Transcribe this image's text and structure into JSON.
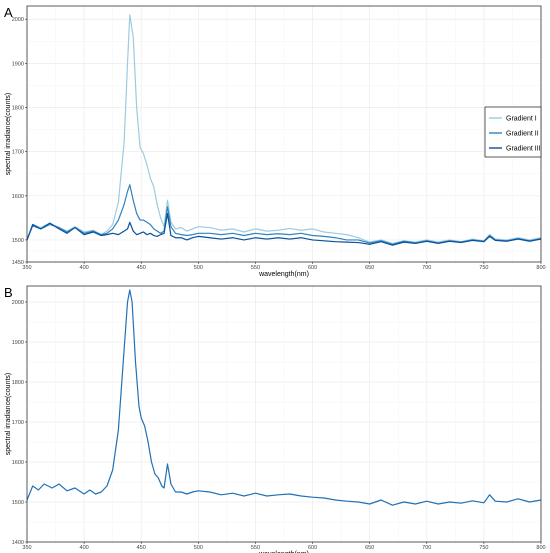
{
  "figure": {
    "panel_letters": [
      "A",
      "B"
    ]
  },
  "colors": {
    "gradient_1": "#9ecae1",
    "gradient_2": "#3182bd",
    "gradient_3": "#08519c",
    "panel_b": "#2171b5"
  },
  "chart_data": [
    {
      "panel": "A",
      "type": "line",
      "xlabel": "wavelength(nm)",
      "ylabel": "spectral irradiance(counts)",
      "xlim": [
        350,
        800
      ],
      "ylim": [
        1450,
        2030
      ],
      "xticks": [
        350,
        400,
        450,
        500,
        550,
        600,
        650,
        700,
        750,
        800
      ],
      "yticks": [
        1450,
        1500,
        1600,
        1700,
        1800,
        1900,
        2000
      ],
      "grid": true,
      "legend": "right",
      "series": [
        {
          "name": "Gradient I",
          "color": "#9ecae1",
          "points": [
            [
              350,
              1500
            ],
            [
              355,
              1535
            ],
            [
              362,
              1528
            ],
            [
              370,
              1538
            ],
            [
              378,
              1528
            ],
            [
              385,
              1520
            ],
            [
              392,
              1530
            ],
            [
              400,
              1518
            ],
            [
              408,
              1522
            ],
            [
              415,
              1512
            ],
            [
              420,
              1520
            ],
            [
              425,
              1535
            ],
            [
              430,
              1585
            ],
            [
              435,
              1720
            ],
            [
              438,
              1900
            ],
            [
              440,
              2010
            ],
            [
              443,
              1960
            ],
            [
              446,
              1800
            ],
            [
              449,
              1710
            ],
            [
              452,
              1695
            ],
            [
              455,
              1670
            ],
            [
              458,
              1640
            ],
            [
              461,
              1620
            ],
            [
              464,
              1580
            ],
            [
              467,
              1550
            ],
            [
              470,
              1530
            ],
            [
              473,
              1590
            ],
            [
              476,
              1540
            ],
            [
              480,
              1525
            ],
            [
              485,
              1528
            ],
            [
              490,
              1520
            ],
            [
              495,
              1525
            ],
            [
              500,
              1530
            ],
            [
              510,
              1528
            ],
            [
              520,
              1522
            ],
            [
              530,
              1525
            ],
            [
              540,
              1518
            ],
            [
              550,
              1525
            ],
            [
              560,
              1520
            ],
            [
              570,
              1522
            ],
            [
              580,
              1526
            ],
            [
              590,
              1522
            ],
            [
              600,
              1525
            ],
            [
              610,
              1518
            ],
            [
              620,
              1515
            ],
            [
              630,
              1512
            ],
            [
              640,
              1505
            ],
            [
              650,
              1495
            ],
            [
              660,
              1500
            ],
            [
              670,
              1492
            ],
            [
              680,
              1498
            ],
            [
              690,
              1495
            ],
            [
              700,
              1500
            ],
            [
              710,
              1495
            ],
            [
              720,
              1500
            ],
            [
              730,
              1496
            ],
            [
              740,
              1502
            ],
            [
              750,
              1498
            ],
            [
              755,
              1512
            ],
            [
              760,
              1502
            ],
            [
              770,
              1500
            ],
            [
              780,
              1505
            ],
            [
              790,
              1500
            ],
            [
              800,
              1505
            ]
          ]
        },
        {
          "name": "Gradient II",
          "color": "#3182bd",
          "points": [
            [
              350,
              1500
            ],
            [
              355,
              1532
            ],
            [
              362,
              1525
            ],
            [
              370,
              1535
            ],
            [
              378,
              1528
            ],
            [
              385,
              1518
            ],
            [
              392,
              1528
            ],
            [
              400,
              1515
            ],
            [
              408,
              1520
            ],
            [
              415,
              1512
            ],
            [
              420,
              1515
            ],
            [
              425,
              1525
            ],
            [
              430,
              1545
            ],
            [
              435,
              1580
            ],
            [
              438,
              1610
            ],
            [
              440,
              1625
            ],
            [
              443,
              1590
            ],
            [
              446,
              1560
            ],
            [
              449,
              1545
            ],
            [
              452,
              1545
            ],
            [
              455,
              1540
            ],
            [
              458,
              1535
            ],
            [
              461,
              1525
            ],
            [
              464,
              1520
            ],
            [
              467,
              1515
            ],
            [
              470,
              1520
            ],
            [
              473,
              1575
            ],
            [
              476,
              1530
            ],
            [
              480,
              1515
            ],
            [
              485,
              1512
            ],
            [
              490,
              1510
            ],
            [
              495,
              1512
            ],
            [
              500,
              1515
            ],
            [
              510,
              1515
            ],
            [
              520,
              1512
            ],
            [
              530,
              1515
            ],
            [
              540,
              1510
            ],
            [
              550,
              1515
            ],
            [
              560,
              1512
            ],
            [
              570,
              1514
            ],
            [
              580,
              1512
            ],
            [
              590,
              1515
            ],
            [
              600,
              1510
            ],
            [
              610,
              1508
            ],
            [
              620,
              1505
            ],
            [
              630,
              1500
            ],
            [
              640,
              1500
            ],
            [
              650,
              1493
            ],
            [
              660,
              1498
            ],
            [
              670,
              1490
            ],
            [
              680,
              1497
            ],
            [
              690,
              1493
            ],
            [
              700,
              1498
            ],
            [
              710,
              1493
            ],
            [
              720,
              1498
            ],
            [
              730,
              1495
            ],
            [
              740,
              1500
            ],
            [
              750,
              1497
            ],
            [
              755,
              1510
            ],
            [
              760,
              1500
            ],
            [
              770,
              1498
            ],
            [
              780,
              1503
            ],
            [
              790,
              1498
            ],
            [
              800,
              1503
            ]
          ]
        },
        {
          "name": "Gradient III",
          "color": "#08519c",
          "points": [
            [
              350,
              1500
            ],
            [
              355,
              1535
            ],
            [
              362,
              1525
            ],
            [
              370,
              1538
            ],
            [
              378,
              1525
            ],
            [
              385,
              1515
            ],
            [
              392,
              1528
            ],
            [
              400,
              1512
            ],
            [
              408,
              1518
            ],
            [
              415,
              1510
            ],
            [
              420,
              1512
            ],
            [
              425,
              1515
            ],
            [
              430,
              1512
            ],
            [
              435,
              1520
            ],
            [
              438,
              1525
            ],
            [
              440,
              1540
            ],
            [
              443,
              1520
            ],
            [
              446,
              1512
            ],
            [
              449,
              1515
            ],
            [
              452,
              1518
            ],
            [
              455,
              1512
            ],
            [
              458,
              1515
            ],
            [
              461,
              1510
            ],
            [
              464,
              1508
            ],
            [
              467,
              1512
            ],
            [
              470,
              1515
            ],
            [
              473,
              1560
            ],
            [
              476,
              1510
            ],
            [
              480,
              1505
            ],
            [
              485,
              1505
            ],
            [
              490,
              1500
            ],
            [
              495,
              1505
            ],
            [
              500,
              1508
            ],
            [
              510,
              1505
            ],
            [
              520,
              1502
            ],
            [
              530,
              1505
            ],
            [
              540,
              1500
            ],
            [
              550,
              1505
            ],
            [
              560,
              1502
            ],
            [
              570,
              1505
            ],
            [
              580,
              1502
            ],
            [
              590,
              1505
            ],
            [
              600,
              1500
            ],
            [
              610,
              1498
            ],
            [
              620,
              1496
            ],
            [
              630,
              1495
            ],
            [
              640,
              1494
            ],
            [
              650,
              1490
            ],
            [
              660,
              1496
            ],
            [
              670,
              1488
            ],
            [
              680,
              1495
            ],
            [
              690,
              1492
            ],
            [
              700,
              1497
            ],
            [
              710,
              1492
            ],
            [
              720,
              1497
            ],
            [
              730,
              1494
            ],
            [
              740,
              1499
            ],
            [
              750,
              1496
            ],
            [
              755,
              1508
            ],
            [
              760,
              1499
            ],
            [
              770,
              1497
            ],
            [
              780,
              1502
            ],
            [
              790,
              1497
            ],
            [
              800,
              1502
            ]
          ]
        }
      ]
    },
    {
      "panel": "B",
      "type": "line",
      "xlabel": "wavelength(nm)",
      "ylabel": "spectral irradiance(counts)",
      "xlim": [
        350,
        800
      ],
      "ylim": [
        1400,
        2040
      ],
      "xticks": [
        350,
        400,
        450,
        500,
        550,
        600,
        650,
        700,
        750,
        800
      ],
      "yticks": [
        1400,
        1500,
        1600,
        1700,
        1800,
        1900,
        2000
      ],
      "grid": true,
      "series": [
        {
          "color": "#2171b5",
          "points": [
            [
              350,
              1505
            ],
            [
              355,
              1540
            ],
            [
              360,
              1530
            ],
            [
              365,
              1545
            ],
            [
              372,
              1535
            ],
            [
              378,
              1545
            ],
            [
              385,
              1528
            ],
            [
              392,
              1535
            ],
            [
              400,
              1520
            ],
            [
              405,
              1530
            ],
            [
              410,
              1520
            ],
            [
              415,
              1525
            ],
            [
              420,
              1540
            ],
            [
              425,
              1580
            ],
            [
              430,
              1680
            ],
            [
              435,
              1880
            ],
            [
              438,
              2000
            ],
            [
              440,
              2030
            ],
            [
              442,
              2000
            ],
            [
              445,
              1850
            ],
            [
              448,
              1740
            ],
            [
              450,
              1710
            ],
            [
              453,
              1690
            ],
            [
              456,
              1650
            ],
            [
              459,
              1600
            ],
            [
              462,
              1570
            ],
            [
              465,
              1560
            ],
            [
              468,
              1540
            ],
            [
              470,
              1535
            ],
            [
              473,
              1595
            ],
            [
              476,
              1545
            ],
            [
              480,
              1525
            ],
            [
              485,
              1525
            ],
            [
              490,
              1520
            ],
            [
              495,
              1525
            ],
            [
              500,
              1528
            ],
            [
              510,
              1525
            ],
            [
              520,
              1518
            ],
            [
              530,
              1522
            ],
            [
              540,
              1515
            ],
            [
              550,
              1522
            ],
            [
              560,
              1515
            ],
            [
              570,
              1518
            ],
            [
              580,
              1520
            ],
            [
              590,
              1515
            ],
            [
              600,
              1512
            ],
            [
              610,
              1510
            ],
            [
              620,
              1505
            ],
            [
              630,
              1502
            ],
            [
              640,
              1500
            ],
            [
              650,
              1495
            ],
            [
              660,
              1505
            ],
            [
              670,
              1492
            ],
            [
              680,
              1500
            ],
            [
              690,
              1495
            ],
            [
              700,
              1502
            ],
            [
              710,
              1495
            ],
            [
              720,
              1500
            ],
            [
              730,
              1497
            ],
            [
              740,
              1503
            ],
            [
              750,
              1498
            ],
            [
              755,
              1518
            ],
            [
              760,
              1502
            ],
            [
              770,
              1500
            ],
            [
              780,
              1508
            ],
            [
              790,
              1500
            ],
            [
              800,
              1505
            ]
          ]
        }
      ]
    }
  ]
}
